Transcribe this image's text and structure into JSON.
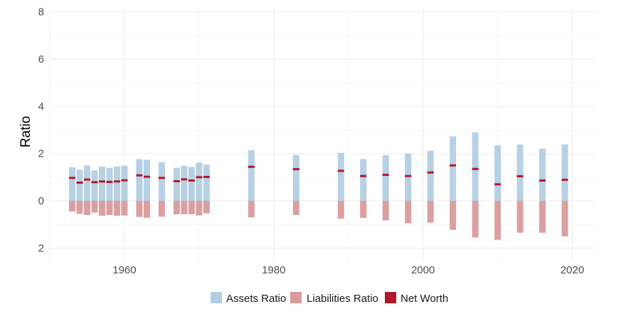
{
  "chart_data": {
    "type": "bar",
    "title": "",
    "xlabel": "",
    "ylabel": "Ratio",
    "xlim": [
      1950,
      2023
    ],
    "ylim": [
      -2.5,
      8.2
    ],
    "x_ticks": [
      1960,
      1980,
      2000,
      2020
    ],
    "x_tick_labels": [
      "1960",
      "1980",
      "2000",
      "2020"
    ],
    "y_ticks": [
      -2,
      0,
      2,
      4,
      6,
      8
    ],
    "y_tick_labels": [
      "2",
      "0",
      "2",
      "4",
      "6",
      "8"
    ],
    "grid": true,
    "legend_position": "bottom",
    "colors": {
      "assets": "#b3cde3",
      "liabilities": "#d99a9c",
      "net_worth": "#b2182b"
    },
    "legend": [
      "Assets Ratio",
      "Liabilities Ratio",
      "Net Worth"
    ],
    "x": [
      1953,
      1954,
      1955,
      1956,
      1957,
      1958,
      1959,
      1960,
      1962,
      1963,
      1965,
      1967,
      1968,
      1969,
      1970,
      1971,
      1977,
      1983,
      1989,
      1992,
      1995,
      1998,
      2001,
      2004,
      2007,
      2010,
      2013,
      2016,
      2019
    ],
    "series": [
      {
        "name": "Assets Ratio",
        "values": [
          1.42,
          1.32,
          1.5,
          1.29,
          1.45,
          1.4,
          1.45,
          1.49,
          1.76,
          1.74,
          1.64,
          1.4,
          1.48,
          1.43,
          1.62,
          1.54,
          2.14,
          1.94,
          2.03,
          1.77,
          1.93,
          2.0,
          2.12,
          2.73,
          2.9,
          2.35,
          2.39,
          2.21,
          2.39
        ]
      },
      {
        "name": "Liabilities Ratio",
        "values": [
          -0.45,
          -0.55,
          -0.6,
          -0.5,
          -0.63,
          -0.6,
          -0.63,
          -0.62,
          -0.68,
          -0.72,
          -0.67,
          -0.57,
          -0.57,
          -0.57,
          -0.62,
          -0.53,
          -0.7,
          -0.6,
          -0.76,
          -0.72,
          -0.83,
          -0.95,
          -0.92,
          -1.23,
          -1.55,
          -1.65,
          -1.35,
          -1.35,
          -1.5
        ]
      },
      {
        "name": "Net Worth",
        "values": [
          0.97,
          0.77,
          0.9,
          0.79,
          0.82,
          0.8,
          0.82,
          0.87,
          1.08,
          1.02,
          0.97,
          0.83,
          0.91,
          0.86,
          1.0,
          1.01,
          1.44,
          1.34,
          1.27,
          1.05,
          1.1,
          1.05,
          1.2,
          1.5,
          1.35,
          0.7,
          1.04,
          0.86,
          0.89
        ]
      }
    ]
  }
}
